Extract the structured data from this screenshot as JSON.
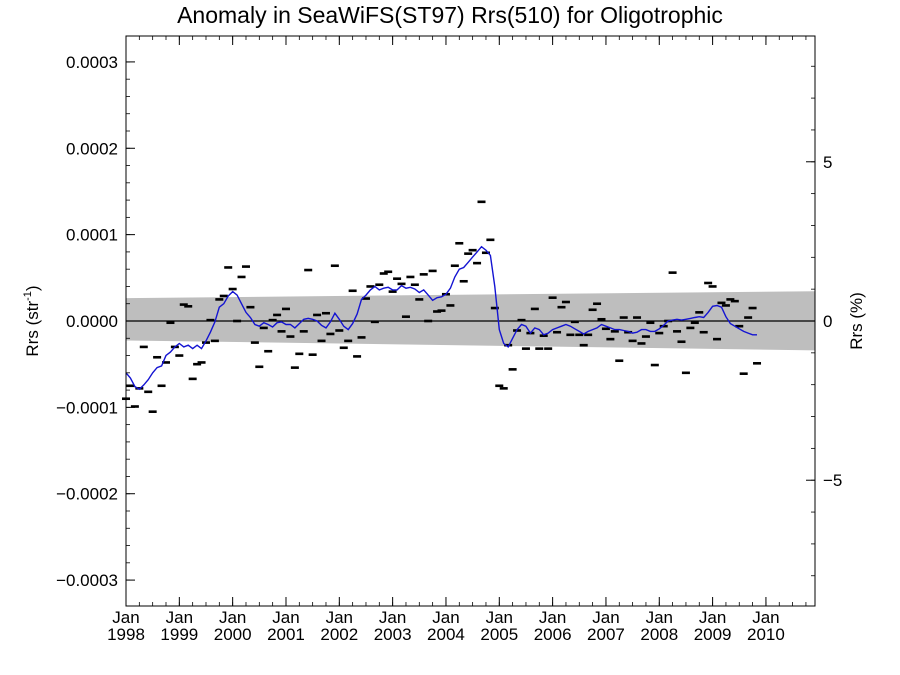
{
  "chart_data": {
    "type": "scatter",
    "title": "Anomaly in SeaWiFS(ST97) Rrs(510) for Oligotrophic",
    "ylabel_left": {
      "base": "Rrs (str",
      "sup": "-1",
      "close": ")"
    },
    "ylabel_right": "Rrs (%)",
    "xlim": [
      1998.0,
      2010.92
    ],
    "ylim_left": [
      -0.00033,
      0.00033
    ],
    "ylim_right": [
      -8.95,
      8.95
    ],
    "x_ticks": [
      {
        "x": 1998,
        "month": "Jan",
        "year": "1998"
      },
      {
        "x": 1999,
        "month": "Jan",
        "year": "1999"
      },
      {
        "x": 2000,
        "month": "Jan",
        "year": "2000"
      },
      {
        "x": 2001,
        "month": "Jan",
        "year": "2001"
      },
      {
        "x": 2002,
        "month": "Jan",
        "year": "2002"
      },
      {
        "x": 2003,
        "month": "Jan",
        "year": "2003"
      },
      {
        "x": 2004,
        "month": "Jan",
        "year": "2004"
      },
      {
        "x": 2005,
        "month": "Jan",
        "year": "2005"
      },
      {
        "x": 2006,
        "month": "Jan",
        "year": "2006"
      },
      {
        "x": 2007,
        "month": "Jan",
        "year": "2007"
      },
      {
        "x": 2008,
        "month": "Jan",
        "year": "2008"
      },
      {
        "x": 2009,
        "month": "Jan",
        "year": "2009"
      },
      {
        "x": 2010,
        "month": "Jan",
        "year": "2010"
      }
    ],
    "y_ticks_left": [
      {
        "value": 0.0003,
        "label": "0.0003"
      },
      {
        "value": 0.0002,
        "label": "0.0002"
      },
      {
        "value": 0.0001,
        "label": "0.0001"
      },
      {
        "value": 0.0,
        "label": "0.0000"
      },
      {
        "value": -0.0001,
        "label": "−0.0001"
      },
      {
        "value": -0.0002,
        "label": "−0.0002"
      },
      {
        "value": -0.0003,
        "label": "−0.0003"
      }
    ],
    "y_ticks_right": [
      {
        "value": 5,
        "label": "5"
      },
      {
        "value": 0,
        "label": "0"
      },
      {
        "value": -5,
        "label": "−5"
      }
    ],
    "trend_band": {
      "x": [
        1998.0,
        2010.92
      ],
      "upper": [
        2.65e-05,
        3.45e-05
      ],
      "lower": [
        -2.25e-05,
        -3.4e-05
      ]
    },
    "zero_line": 0,
    "monthly_points_x_start": 1998.0,
    "monthly_points_x_step": 0.08333,
    "monthly_points": [
      -9e-05,
      -7.5e-05,
      -9.9e-05,
      -7.8e-05,
      -3e-05,
      -8.2e-05,
      -0.000105,
      -4.2e-05,
      -7.5e-05,
      -4.8e-05,
      -2e-06,
      -3e-05,
      -4e-05,
      1.9e-05,
      1.7e-05,
      -6.7e-05,
      -5e-05,
      -4.8e-05,
      -2.5e-05,
      1e-06,
      -2.3e-05,
      2.5e-05,
      2.9e-05,
      6.2e-05,
      3.7e-05,
      0.0,
      5.1e-05,
      6.3e-05,
      1.6e-05,
      -2.5e-05,
      -5.3e-05,
      -8e-06,
      -3.5e-05,
      1e-06,
      7e-06,
      -1.2e-05,
      1.4e-05,
      -1.8e-05,
      -5.4e-05,
      -3.8e-05,
      -1.2e-05,
      5.9e-05,
      -3.9e-05,
      7e-06,
      -2.3e-05,
      9e-06,
      -1.5e-05,
      6.4e-05,
      -1.1e-05,
      -3.1e-05,
      -2.3e-05,
      3.5e-05,
      -4.1e-05,
      -1.9e-05,
      2.6e-05,
      4e-05,
      -1e-06,
      4.2e-05,
      5.5e-05,
      5.7e-05,
      3.4e-05,
      4.9e-05,
      4.3e-05,
      5e-06,
      5.1e-05,
      4.2e-05,
      2.5e-05,
      5.4e-05,
      0.0,
      5.8e-05,
      1.1e-05,
      1.2e-05,
      3.1e-05,
      1.8e-05,
      6.4e-05,
      9e-05,
      4.6e-05,
      7.8e-05,
      8.2e-05,
      6.7e-05,
      0.000138,
      7.9e-05,
      9.4e-05,
      1.5e-05,
      -7.5e-05,
      -7.8e-05,
      -2.8e-05,
      -5.6e-05,
      -1.1e-05,
      1e-06,
      -3.2e-05,
      -1.4e-05,
      1.4e-05,
      -3.2e-05,
      -1.7e-05,
      -3.2e-05,
      2.7e-05,
      -1.3e-05,
      1.6e-05,
      2.2e-05,
      -1.6e-05,
      -1e-06,
      -1.6e-05,
      -2.8e-05,
      -1.6e-05,
      1.3e-05,
      2e-05,
      2e-06,
      -9e-06,
      -2.1e-05,
      -1.2e-05,
      -4.6e-05,
      4e-06,
      -1.3e-05,
      -2.3e-05,
      4e-06,
      -2.6e-05,
      -1.8e-05,
      -2e-06,
      -5.1e-05,
      -1.4e-05,
      -6e-06,
      0.0,
      5.6e-05,
      -1.2e-05,
      -2.4e-05,
      -6e-05,
      -8e-06,
      -2e-06,
      1e-05,
      -1.3e-05,
      4.4e-05,
      4e-05,
      -2.1e-05,
      2.1e-05,
      1.8e-05,
      2.5e-05,
      2.3e-05,
      -6e-06,
      -6.1e-05,
      4e-06,
      1.5e-05,
      -4.9e-05
    ],
    "running_mean_x_start": 1998.0,
    "running_mean_x_step": 0.08333,
    "running_mean": [
      -6e-05,
      -6.6e-05,
      -7.6e-05,
      -7.9e-05,
      -7.4e-05,
      -6.8e-05,
      -6e-05,
      -5.4e-05,
      -5.2e-05,
      -4e-05,
      -3.6e-05,
      -3e-05,
      -2.6e-05,
      -3e-05,
      -2.8e-05,
      -3.2e-05,
      -2.8e-05,
      -3.2e-05,
      -2.3e-05,
      -1.3e-05,
      -1e-06,
      1.6e-05,
      2e-05,
      2.9e-05,
      3.4e-05,
      3e-05,
      2e-05,
      1e-05,
      4e-06,
      -4e-06,
      -6e-06,
      -2e-06,
      -4e-06,
      -7e-06,
      -2e-06,
      -1e-06,
      -4e-06,
      -4e-06,
      -8e-06,
      -3e-06,
      2e-06,
      3e-06,
      2e-06,
      0.0,
      -5e-06,
      -8e-06,
      -1e-06,
      9e-06,
      2e-06,
      -6e-06,
      -1e-05,
      -3e-06,
      8e-06,
      2.5e-05,
      3e-05,
      3.6e-05,
      4e-05,
      3.6e-05,
      3.8e-05,
      3.9e-05,
      3.6e-05,
      3.6e-05,
      4.1e-05,
      3.8e-05,
      3.9e-05,
      3.7e-05,
      3.3e-05,
      3.6e-05,
      3e-05,
      2.4e-05,
      2.7e-05,
      2.8e-05,
      3.1e-05,
      3.8e-05,
      5.1e-05,
      6e-05,
      6.2e-05,
      6.8e-05,
      7.4e-05,
      8e-05,
      8.6e-05,
      8.2e-05,
      7.6e-05,
      4e-05,
      -1e-05,
      -2.6e-05,
      -3e-05,
      -2e-05,
      -1e-05,
      -4e-06,
      -6e-06,
      -1.4e-05,
      -8e-06,
      -1e-05,
      -1.6e-05,
      -1.4e-05,
      -1e-05,
      -8e-06,
      -6e-06,
      -4e-06,
      -6e-06,
      -9e-06,
      -1.2e-05,
      -1.5e-05,
      -1.2e-05,
      -1e-05,
      -8e-06,
      -4e-06,
      -6e-06,
      -8e-06,
      -1e-05,
      -1e-05,
      -1.1e-05,
      -1.2e-05,
      -1.4e-05,
      -1.3e-05,
      -1e-05,
      -1e-05,
      -1.2e-05,
      -1.2e-05,
      -9e-06,
      -5e-06,
      0.0,
      1e-06,
      2e-06,
      1e-06,
      2e-06,
      3e-06,
      4e-06,
      5e-06,
      4e-06,
      1e-05,
      1.7e-05,
      1.8e-05,
      1.6e-05,
      5e-06,
      -3e-06,
      -6e-06,
      -9e-06,
      -1.2e-05,
      -1.4e-05,
      -1.6e-05,
      -1.6e-05
    ],
    "grid": false,
    "legend": "none",
    "colors": {
      "running_mean": "#1414d2",
      "band": "#bebebe",
      "points": "#000000",
      "zero_line": "#000000",
      "axes": "#000000"
    }
  }
}
